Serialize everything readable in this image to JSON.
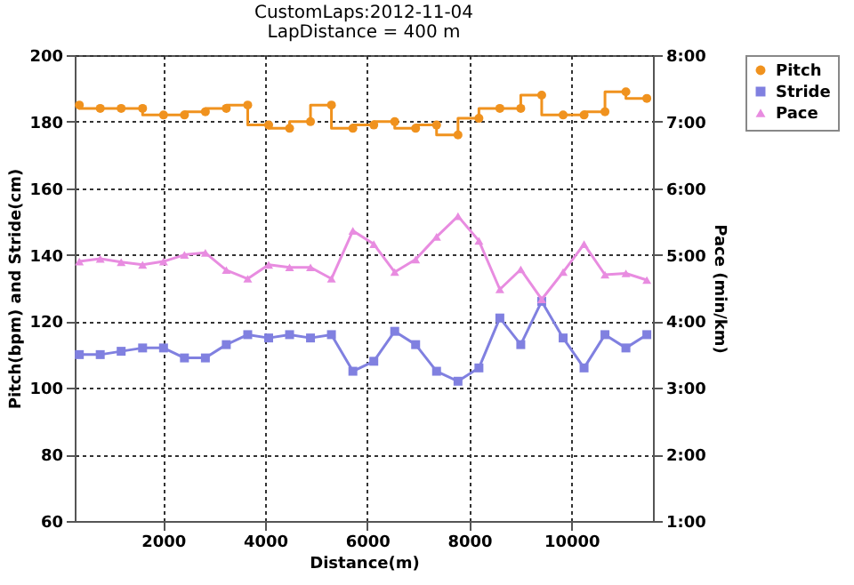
{
  "chart_data": {
    "type": "line",
    "title": "CustomLaps:2012-11-04",
    "subtitle": "LapDistance = 400 m",
    "xlabel": "Distance(m)",
    "ylabel": "Pitch(bpm) and Stride(cm)",
    "y2label": "Pace (min/km)",
    "x": [
      360,
      770,
      1180,
      1600,
      2010,
      2420,
      2830,
      3240,
      3660,
      4070,
      4480,
      4890,
      5300,
      5720,
      6130,
      6540,
      6950,
      7360,
      7780,
      8190,
      8600,
      9010,
      9420,
      9840,
      10250,
      10660,
      11070,
      11480
    ],
    "series": [
      {
        "name": "Pitch",
        "type": "step",
        "color": "#f0921e",
        "marker": "circle",
        "values": [
          185,
          184,
          184,
          184,
          182,
          182,
          183,
          184,
          185,
          179,
          178,
          180,
          185,
          178,
          179,
          180,
          178,
          179,
          176,
          181,
          184,
          184,
          188,
          182,
          182,
          183,
          189,
          187
        ]
      },
      {
        "name": "Stride",
        "type": "line",
        "color": "#8080e0",
        "marker": "square",
        "values": [
          110,
          110,
          111,
          112,
          112,
          109,
          109,
          113,
          116,
          115,
          116,
          115,
          116,
          105,
          108,
          117,
          113,
          105,
          102,
          106,
          121,
          113,
          126,
          115,
          106,
          116,
          112,
          116
        ]
      },
      {
        "name": "Pace",
        "type": "line",
        "axis": "y2",
        "color": "#e88ce0",
        "marker": "triangle",
        "values": [
          4.9,
          4.94,
          4.89,
          4.85,
          4.9,
          5.0,
          5.03,
          4.77,
          4.64,
          4.85,
          4.81,
          4.81,
          4.64,
          5.36,
          5.16,
          4.74,
          4.93,
          5.27,
          5.58,
          5.21,
          4.48,
          4.78,
          4.33,
          4.74,
          5.16,
          4.7,
          4.72,
          4.62
        ]
      }
    ],
    "xlim": [
      270,
      11600
    ],
    "xticks": [
      2000,
      4000,
      6000,
      8000,
      10000
    ],
    "ylim": [
      60,
      200
    ],
    "yticks": [
      60,
      80,
      100,
      120,
      140,
      160,
      180,
      200
    ],
    "y2lim": [
      1,
      8
    ],
    "y2ticks": [
      {
        "value": 1,
        "label": "1:00"
      },
      {
        "value": 2,
        "label": "2:00"
      },
      {
        "value": 3,
        "label": "3:00"
      },
      {
        "value": 4,
        "label": "4:00"
      },
      {
        "value": 5,
        "label": "5:00"
      },
      {
        "value": 6,
        "label": "6:00"
      },
      {
        "value": 7,
        "label": "7:00"
      },
      {
        "value": 8,
        "label": "8:00"
      }
    ],
    "grid": true,
    "legend": "right",
    "line_style": "solid"
  }
}
